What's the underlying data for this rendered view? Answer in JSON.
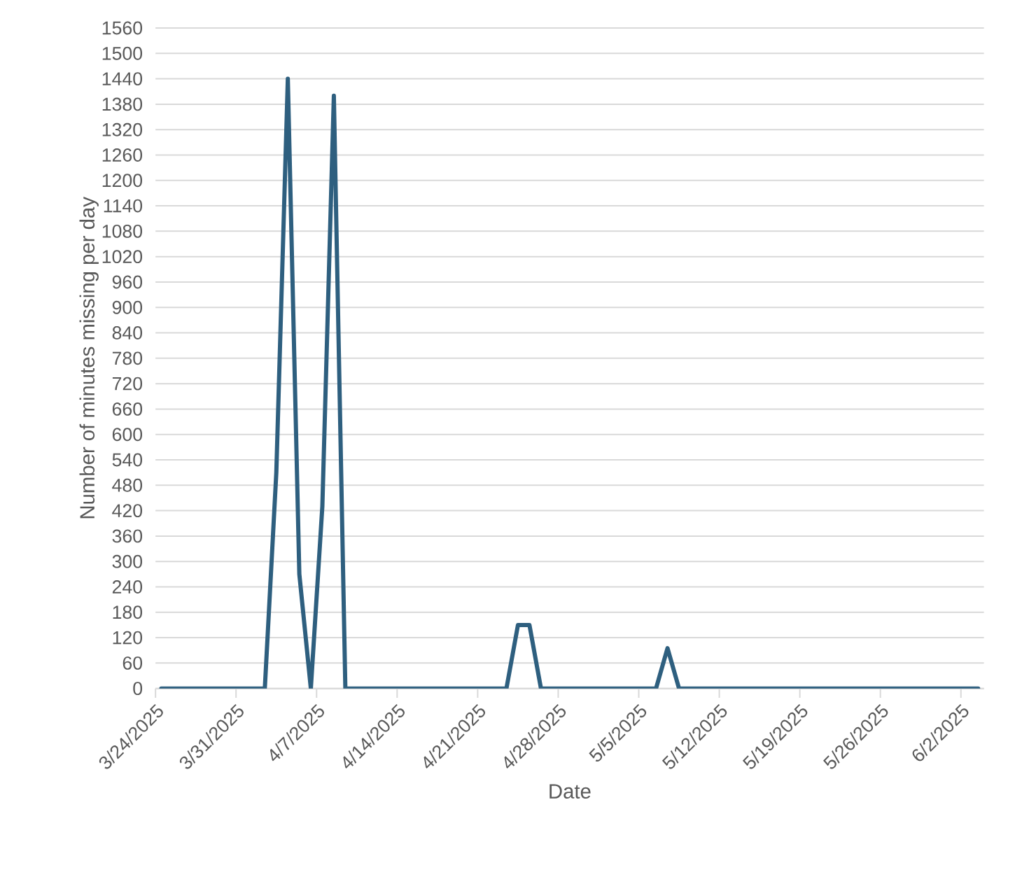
{
  "chart_data": {
    "type": "line",
    "xlabel": "Date",
    "ylabel": "Number of minutes missing per day",
    "color": "#2e5f7f",
    "x": [
      "2025-03-24T12:00",
      "2025-03-25T12:00",
      "2025-03-26T12:00",
      "2025-03-27T12:00",
      "2025-03-28T12:00",
      "2025-03-29T12:00",
      "2025-03-30T12:00",
      "2025-03-31T12:00",
      "2025-04-01T12:00",
      "2025-04-02T12:00",
      "2025-04-03T12:00",
      "2025-04-04T12:00",
      "2025-04-05T12:00",
      "2025-04-06T12:00",
      "2025-04-07T12:00",
      "2025-04-08T12:00",
      "2025-04-09T12:00",
      "2025-04-10T12:00",
      "2025-04-11T12:00",
      "2025-04-12T12:00",
      "2025-04-13T12:00",
      "2025-04-14T12:00",
      "2025-04-15T12:00",
      "2025-04-16T12:00",
      "2025-04-17T12:00",
      "2025-04-18T12:00",
      "2025-04-19T12:00",
      "2025-04-20T12:00",
      "2025-04-21T12:00",
      "2025-04-22T12:00",
      "2025-04-23T12:00",
      "2025-04-24T12:00",
      "2025-04-25T12:00",
      "2025-04-26T12:00",
      "2025-04-27T12:00",
      "2025-04-28T12:00",
      "2025-04-29T12:00",
      "2025-04-30T12:00",
      "2025-05-01T12:00",
      "2025-05-02T12:00",
      "2025-05-03T12:00",
      "2025-05-04T12:00",
      "2025-05-05T12:00",
      "2025-05-06T12:00",
      "2025-05-07T12:00",
      "2025-05-08T12:00",
      "2025-05-09T12:00",
      "2025-05-10T12:00",
      "2025-05-11T12:00",
      "2025-05-12T12:00",
      "2025-05-13T12:00",
      "2025-05-14T12:00",
      "2025-05-15T12:00",
      "2025-05-16T12:00",
      "2025-05-17T12:00",
      "2025-05-18T12:00",
      "2025-05-19T12:00",
      "2025-05-20T12:00",
      "2025-05-21T12:00",
      "2025-05-22T12:00",
      "2025-05-23T12:00",
      "2025-05-24T12:00",
      "2025-05-25T12:00",
      "2025-05-26T12:00",
      "2025-05-27T12:00",
      "2025-05-28T12:00",
      "2025-05-29T12:00",
      "2025-05-30T12:00",
      "2025-05-31T12:00",
      "2025-06-01T12:00",
      "2025-06-02T12:00",
      "2025-06-03T12:00"
    ],
    "values": [
      0,
      0,
      0,
      0,
      0,
      0,
      0,
      0,
      0,
      0,
      510,
      1440,
      270,
      0,
      430,
      1400,
      0,
      0,
      0,
      0,
      0,
      0,
      0,
      0,
      0,
      0,
      0,
      0,
      0,
      0,
      0,
      150,
      150,
      0,
      0,
      0,
      0,
      0,
      0,
      0,
      0,
      0,
      0,
      0,
      95,
      0,
      0,
      0,
      0,
      0,
      0,
      0,
      0,
      0,
      0,
      0,
      0,
      0,
      0,
      0,
      0,
      0,
      0,
      0,
      0,
      0,
      0,
      0,
      0,
      0,
      0,
      0
    ],
    "xlim": [
      "2025-03-24",
      "2025-06-04"
    ],
    "xticks": [
      {
        "value": "2025-03-24",
        "label": "3/24/2025"
      },
      {
        "value": "2025-03-31",
        "label": "3/31/2025"
      },
      {
        "value": "2025-04-07",
        "label": "4/7/2025"
      },
      {
        "value": "2025-04-14",
        "label": "4/14/2025"
      },
      {
        "value": "2025-04-21",
        "label": "4/21/2025"
      },
      {
        "value": "2025-04-28",
        "label": "4/28/2025"
      },
      {
        "value": "2025-05-05",
        "label": "5/5/2025"
      },
      {
        "value": "2025-05-12",
        "label": "5/12/2025"
      },
      {
        "value": "2025-05-19",
        "label": "5/19/2025"
      },
      {
        "value": "2025-05-26",
        "label": "5/26/2025"
      },
      {
        "value": "2025-06-02",
        "label": "6/2/2025"
      }
    ],
    "ylim": [
      0,
      1560
    ],
    "yticks": [
      0,
      60,
      120,
      180,
      240,
      300,
      360,
      420,
      480,
      540,
      600,
      660,
      720,
      780,
      840,
      900,
      960,
      1020,
      1080,
      1140,
      1200,
      1260,
      1320,
      1380,
      1440,
      1500,
      1560
    ],
    "grid": "y"
  }
}
